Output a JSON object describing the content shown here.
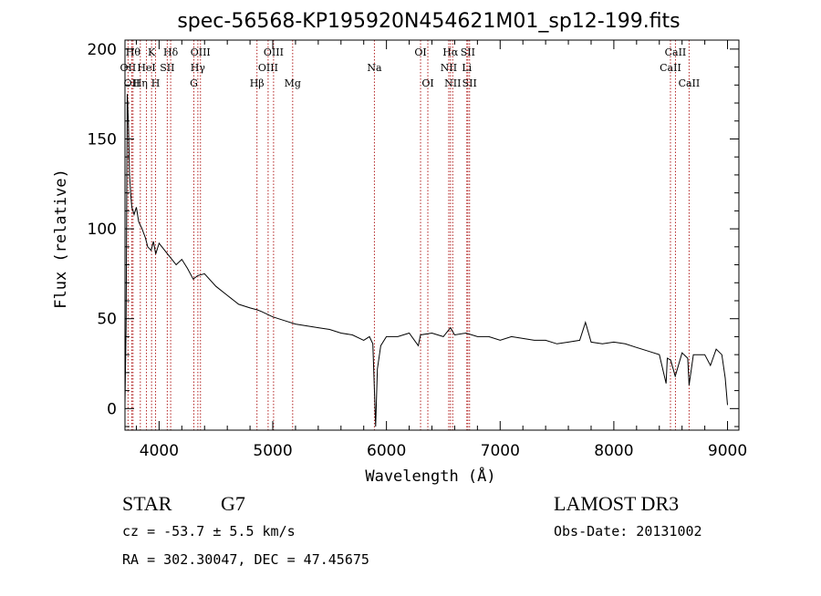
{
  "colors": {
    "spectrum": "#000000",
    "line_markers": "#b22222",
    "axes": "#000000",
    "background": "#ffffff"
  },
  "chart_data": {
    "type": "line",
    "title": "spec-56568-KP195920N454621M01_sp12-199.fits",
    "xlabel": "Wavelength (Å)",
    "ylabel": "Flux (relative)",
    "xlim": [
      3700,
      9100
    ],
    "ylim": [
      -12,
      205
    ],
    "xticks": [
      4000,
      5000,
      6000,
      7000,
      8000,
      9000
    ],
    "yticks": [
      0,
      50,
      100,
      150,
      200
    ],
    "grid": false,
    "series": [
      {
        "x": [
          3700,
          3710,
          3720,
          3730,
          3740,
          3750,
          3760,
          3780,
          3800,
          3820,
          3850,
          3880,
          3900,
          3930,
          3950,
          3970,
          4000,
          4050,
          4100,
          4150,
          4200,
          4250,
          4300,
          4340,
          4400,
          4500,
          4600,
          4700,
          4800,
          4860,
          4900,
          5000,
          5100,
          5200,
          5300,
          5400,
          5500,
          5600,
          5700,
          5800,
          5850,
          5880,
          5895,
          5905,
          5920,
          5950,
          6000,
          6100,
          6200,
          6280,
          6300,
          6400,
          6500,
          6563,
          6600,
          6700,
          6800,
          6900,
          7000,
          7100,
          7200,
          7300,
          7400,
          7500,
          7600,
          7700,
          7750,
          7800,
          7900,
          8000,
          8100,
          8200,
          8300,
          8400,
          8460,
          8470,
          8500,
          8540,
          8600,
          8650,
          8662,
          8700,
          8800,
          8850,
          8900,
          8950,
          8980,
          9000
        ],
        "values": [
          3,
          45,
          175,
          160,
          130,
          120,
          112,
          108,
          112,
          104,
          100,
          95,
          90,
          88,
          93,
          86,
          92,
          88,
          84,
          80,
          83,
          78,
          72,
          74,
          75,
          68,
          63,
          58,
          56,
          55,
          54,
          51,
          49,
          47,
          46,
          45,
          44,
          42,
          41,
          38,
          40,
          36,
          8,
          -10,
          22,
          35,
          40,
          40,
          42,
          35,
          41,
          42,
          40,
          45,
          41,
          42,
          40,
          40,
          38,
          40,
          39,
          38,
          38,
          36,
          37,
          38,
          48,
          37,
          36,
          37,
          36,
          34,
          32,
          30,
          14,
          28,
          27,
          18,
          31,
          28,
          13,
          30,
          30,
          24,
          33,
          30,
          17,
          2
        ]
      }
    ],
    "lines": [
      {
        "x": 3727,
        "label": "OII",
        "row": 1
      },
      {
        "x": 3760,
        "label": "OII",
        "row": 2
      },
      {
        "x": 3771,
        "label": "Hθ",
        "row": 0
      },
      {
        "x": 3835,
        "label": "Hη",
        "row": 2
      },
      {
        "x": 3889,
        "label": "HeI",
        "row": 1
      },
      {
        "x": 3934,
        "label": "K",
        "row": 0
      },
      {
        "x": 3969,
        "label": "H",
        "row": 2
      },
      {
        "x": 4072,
        "label": "SII",
        "row": 1
      },
      {
        "x": 4102,
        "label": "Hδ",
        "row": 0
      },
      {
        "x": 4306,
        "label": "G",
        "row": 2
      },
      {
        "x": 4341,
        "label": "Hγ",
        "row": 1
      },
      {
        "x": 4364,
        "label": "OIII",
        "row": 0
      },
      {
        "x": 4861,
        "label": "Hβ",
        "row": 2
      },
      {
        "x": 4959,
        "label": "OIII",
        "row": 1
      },
      {
        "x": 5007,
        "label": "OIII",
        "row": 0
      },
      {
        "x": 5175,
        "label": "Mg",
        "row": 2
      },
      {
        "x": 5894,
        "label": "Na",
        "row": 1
      },
      {
        "x": 6300,
        "label": "OI",
        "row": 0
      },
      {
        "x": 6364,
        "label": "OI",
        "row": 2
      },
      {
        "x": 6548,
        "label": "NII",
        "row": 1
      },
      {
        "x": 6563,
        "label": "Hα",
        "row": 0
      },
      {
        "x": 6583,
        "label": "NII",
        "row": 2
      },
      {
        "x": 6707,
        "label": "Li",
        "row": 1
      },
      {
        "x": 6716,
        "label": "SII",
        "row": 0
      },
      {
        "x": 6731,
        "label": "SII",
        "row": 2
      },
      {
        "x": 8498,
        "label": "CaII",
        "row": 1
      },
      {
        "x": 8542,
        "label": "CaII",
        "row": 0
      },
      {
        "x": 8662,
        "label": "CaII",
        "row": 2
      }
    ]
  },
  "info": {
    "class": "STAR",
    "subclass": "G7",
    "cz": "cz = -53.7 ± 5.5 km/s",
    "coords": "RA = 302.30047, DEC =  47.45675",
    "survey": "LAMOST DR3",
    "obs_date": "Obs-Date: 20131002"
  }
}
